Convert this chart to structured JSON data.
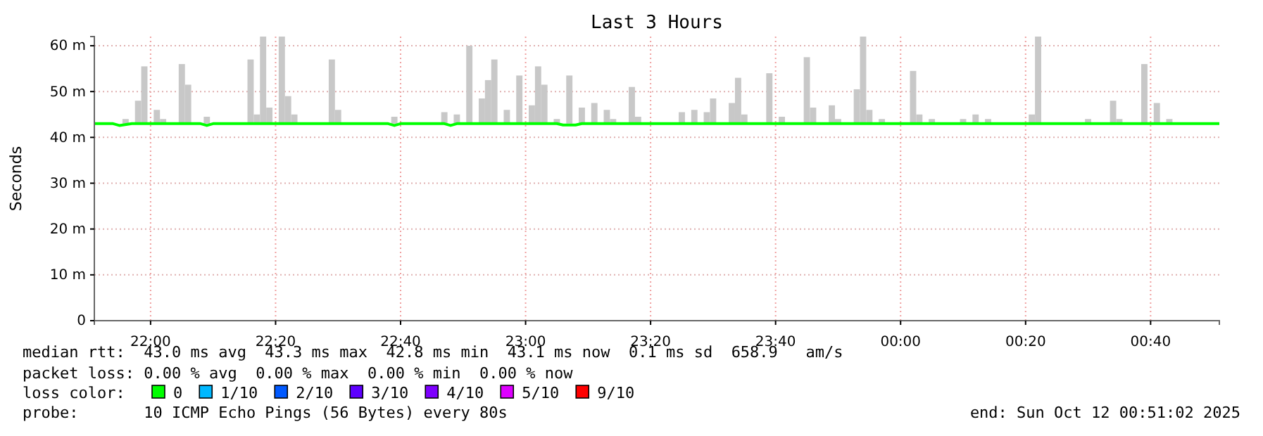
{
  "chart_data": {
    "type": "bar",
    "title": "Last 3 Hours",
    "ylabel": "Seconds",
    "xlim": [
      "2025-10-11T21:51",
      "2025-10-12T00:51"
    ],
    "xticks": [
      {
        "value": "2025-10-11T22:00",
        "label": "22:00"
      },
      {
        "value": "2025-10-11T22:20",
        "label": "22:20"
      },
      {
        "value": "2025-10-11T22:40",
        "label": "22:40"
      },
      {
        "value": "2025-10-11T23:00",
        "label": "23:00"
      },
      {
        "value": "2025-10-11T23:20",
        "label": "23:20"
      },
      {
        "value": "2025-10-11T23:40",
        "label": "23:40"
      },
      {
        "value": "2025-10-12T00:00",
        "label": "00:00"
      },
      {
        "value": "2025-10-12T00:20",
        "label": "00:20"
      },
      {
        "value": "2025-10-12T00:40",
        "label": "00:40"
      }
    ],
    "ylim": [
      0,
      62
    ],
    "yticks": [
      0,
      {
        "value": 10,
        "label": "10 m"
      },
      {
        "value": 20,
        "label": "20 m"
      },
      {
        "value": 30,
        "label": "30 m"
      },
      {
        "value": 40,
        "label": "40 m"
      },
      {
        "value": 50,
        "label": "50 m"
      },
      {
        "value": 60,
        "label": "60 m"
      }
    ],
    "grid": true,
    "legend": "bottom",
    "legend_title": "loss color:",
    "series": [
      {
        "color": "#c8c8c8",
        "x": [
          "2025-10-11T21:56",
          "2025-10-11T21:58",
          "2025-10-11T21:59",
          "2025-10-11T22:01",
          "2025-10-11T22:02",
          "2025-10-11T22:05",
          "2025-10-11T22:06",
          "2025-10-11T22:09",
          "2025-10-11T22:16",
          "2025-10-11T22:17",
          "2025-10-11T22:18",
          "2025-10-11T22:19",
          "2025-10-11T22:21",
          "2025-10-11T22:22",
          "2025-10-11T22:23",
          "2025-10-11T22:29",
          "2025-10-11T22:30",
          "2025-10-11T22:39",
          "2025-10-11T22:47",
          "2025-10-11T22:49",
          "2025-10-11T22:51",
          "2025-10-11T22:53",
          "2025-10-11T22:54",
          "2025-10-11T22:55",
          "2025-10-11T22:57",
          "2025-10-11T22:59",
          "2025-10-11T23:01",
          "2025-10-11T23:02",
          "2025-10-11T23:03",
          "2025-10-11T23:05",
          "2025-10-11T23:07",
          "2025-10-11T23:09",
          "2025-10-11T23:11",
          "2025-10-11T23:13",
          "2025-10-11T23:14",
          "2025-10-11T23:17",
          "2025-10-11T23:18",
          "2025-10-11T23:25",
          "2025-10-11T23:27",
          "2025-10-11T23:29",
          "2025-10-11T23:30",
          "2025-10-11T23:33",
          "2025-10-11T23:34",
          "2025-10-11T23:35",
          "2025-10-11T23:39",
          "2025-10-11T23:41",
          "2025-10-11T23:45",
          "2025-10-11T23:46",
          "2025-10-11T23:49",
          "2025-10-11T23:50",
          "2025-10-11T23:53",
          "2025-10-11T23:54",
          "2025-10-11T23:55",
          "2025-10-11T23:57",
          "2025-10-12T00:02",
          "2025-10-12T00:03",
          "2025-10-12T00:05",
          "2025-10-12T00:10",
          "2025-10-12T00:12",
          "2025-10-12T00:14",
          "2025-10-12T00:21",
          "2025-10-12T00:22",
          "2025-10-12T00:30",
          "2025-10-12T00:34",
          "2025-10-12T00:35",
          "2025-10-12T00:39",
          "2025-10-12T00:41",
          "2025-10-12T00:43"
        ],
        "base": [
          43,
          43,
          43,
          43,
          43,
          43,
          43,
          43,
          43,
          43,
          43,
          43,
          43,
          43,
          43,
          43,
          43,
          43,
          43,
          43,
          43,
          43,
          43,
          43,
          43,
          43,
          43,
          43,
          43,
          43,
          43,
          43,
          43,
          43,
          43,
          43,
          43,
          43,
          43,
          43,
          43,
          43,
          43,
          43,
          43,
          43,
          43,
          43,
          43,
          43,
          43,
          43,
          43,
          43,
          43,
          43,
          43,
          43,
          43,
          43,
          43,
          43,
          43,
          43,
          43,
          43,
          43,
          43
        ],
        "values": [
          1,
          5,
          12.5,
          3,
          1,
          13,
          8.5,
          1.5,
          14,
          2,
          19,
          3.5,
          19,
          6,
          2,
          14,
          3,
          1.5,
          2.5,
          2,
          17,
          5.5,
          9.5,
          14,
          3,
          10.5,
          4,
          12.5,
          8.5,
          1,
          10.5,
          3.5,
          4.5,
          3,
          1,
          8,
          1.5,
          2.5,
          3,
          2.5,
          5.5,
          4.5,
          10,
          2,
          11,
          1.5,
          14.5,
          3.5,
          4,
          1,
          7.5,
          19,
          3,
          1,
          11.5,
          2,
          1,
          1,
          2,
          1,
          2,
          19,
          1,
          5,
          1,
          13,
          4.5,
          1
        ]
      },
      {
        "type": "line",
        "name": "0",
        "color": "#00ff00",
        "x": [
          "2025-10-11T21:51",
          "2025-10-11T21:54",
          "2025-10-11T21:55",
          "2025-10-11T21:57",
          "2025-10-11T22:08",
          "2025-10-11T22:09",
          "2025-10-11T22:10",
          "2025-10-11T22:38",
          "2025-10-11T22:39",
          "2025-10-11T22:40",
          "2025-10-11T22:47",
          "2025-10-11T22:48",
          "2025-10-11T22:49",
          "2025-10-11T23:05",
          "2025-10-11T23:06",
          "2025-10-11T23:08",
          "2025-10-11T23:09",
          "2025-10-12T00:51"
        ],
        "values": [
          43,
          43,
          42.6,
          43,
          43,
          42.6,
          43,
          43,
          42.6,
          43,
          43,
          42.6,
          43,
          43,
          42.7,
          42.7,
          43,
          43
        ]
      },
      {
        "type": "line",
        "name": "1/10",
        "color": "#00b8ff"
      },
      {
        "type": "line",
        "name": "2/10",
        "color": "#0059ff"
      },
      {
        "type": "line",
        "name": "3/10",
        "color": "#5e00ff"
      },
      {
        "type": "line",
        "name": "4/10",
        "color": "#7e00ff"
      },
      {
        "type": "line",
        "name": "5/10",
        "color": "#dd00ff"
      },
      {
        "type": "line",
        "name": "9/10",
        "color": "#ff0000"
      }
    ],
    "annotations": [
      "median rtt:  43.0 ms avg  43.3 ms max  42.8 ms min  43.1 ms now  0.1 ms sd  658.9   am/s",
      "packet loss: 0.00 % avg  0.00 % max  0.00 % min  0.00 % now",
      "probe:       10 ICMP Echo Pings (56 Bytes) every 80s",
      "end: Sun Oct 12 00:51:02 2025"
    ]
  }
}
